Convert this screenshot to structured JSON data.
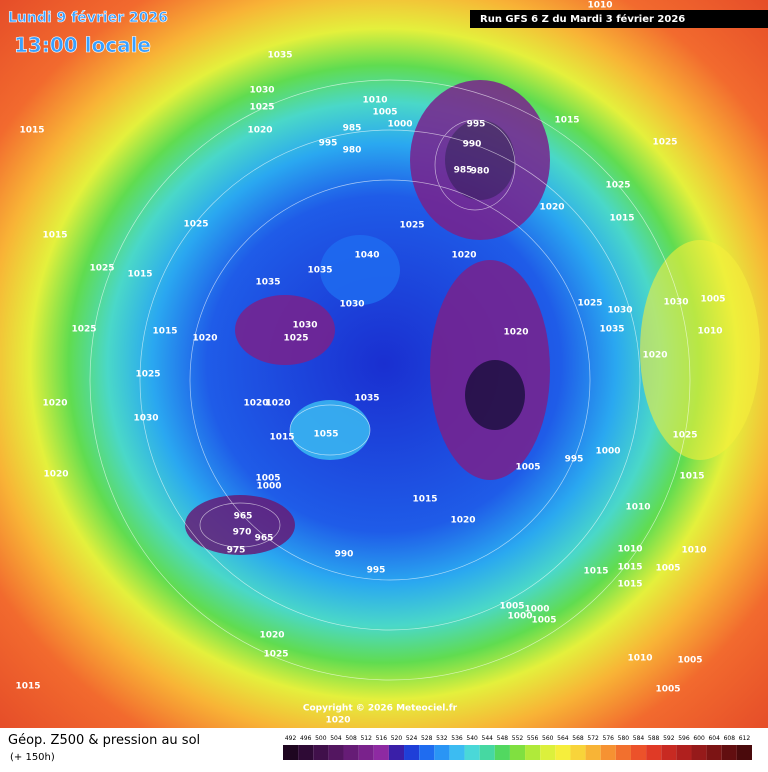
{
  "header": {
    "date": "Lundi 9 février 2026",
    "time": "13:00 locale",
    "run": "Run GFS 6 Z du Mardi 3 février 2026"
  },
  "map": {
    "pressure_labels": [
      "1035",
      "1030",
      "1025",
      "1020",
      "1015",
      "1010",
      "1005",
      "1000",
      "985",
      "995",
      "980",
      "995",
      "990",
      "985",
      "980",
      "1015",
      "1025",
      "1025",
      "1020",
      "1015",
      "1015",
      "1025",
      "1025",
      "1020",
      "1040",
      "1035",
      "1035",
      "1030",
      "1030",
      "1025",
      "1015",
      "1020",
      "1025",
      "1015",
      "1025",
      "1025",
      "1020",
      "1025",
      "1035",
      "1030",
      "1020",
      "1030",
      "1005",
      "1010",
      "1020",
      "1030",
      "1020",
      "1020",
      "1035",
      "1015",
      "1055",
      "1005",
      "995",
      "1000",
      "1025",
      "1015",
      "1020",
      "1015",
      "1020",
      "1010",
      "1005",
      "1000",
      "965",
      "970",
      "965",
      "975",
      "990",
      "995",
      "1010",
      "1015",
      "1010",
      "1015",
      "1015",
      "1005",
      "1005",
      "1000",
      "1005",
      "1000",
      "1020",
      "1025",
      "1015",
      "1010",
      "1005",
      "1005",
      "1020",
      "1010"
    ],
    "copyright": "Copyright © 2026 Meteociel.fr"
  },
  "footer": {
    "title": "Géop. Z500 & pression au sol",
    "lead": "(+ 150h)",
    "scale": {
      "values": [
        492,
        496,
        500,
        504,
        508,
        512,
        516,
        520,
        524,
        528,
        532,
        536,
        540,
        544,
        548,
        552,
        556,
        560,
        564,
        568,
        572,
        576,
        580,
        584,
        588,
        592,
        596,
        600,
        604,
        608,
        612
      ],
      "colors": [
        "#1e0620",
        "#2e0a35",
        "#40104a",
        "#531660",
        "#661c76",
        "#7a228c",
        "#8e2aa2",
        "#3a1fa8",
        "#1f3fd8",
        "#1f6cf0",
        "#2a95f5",
        "#3cbcf2",
        "#4ad8d8",
        "#46d8a2",
        "#52d860",
        "#80e040",
        "#b0ea3a",
        "#dcf03c",
        "#f6ee3c",
        "#f8d43a",
        "#f8b436",
        "#f69232",
        "#f2702e",
        "#ec522a",
        "#e03a26",
        "#c82a22",
        "#b0201e",
        "#961a1a",
        "#7c1414",
        "#620e10",
        "#4a0a0c"
      ]
    }
  }
}
